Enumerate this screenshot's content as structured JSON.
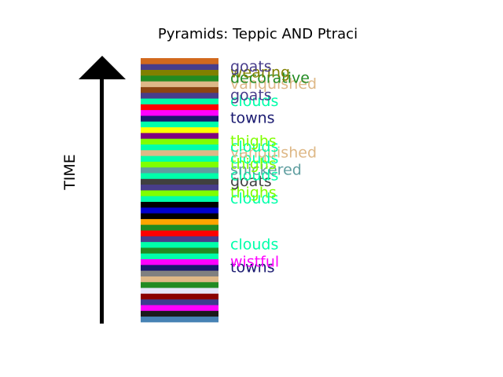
{
  "chart_data": {
    "type": "stacked-strata",
    "title": "Pyramids: Teppic AND Ptraci",
    "ylabel": "TIME",
    "arrow": "up",
    "strata": [
      {
        "color": "#4682b4"
      },
      {
        "color": "#1a1a1a"
      },
      {
        "color": "#ff00ff"
      },
      {
        "color": "#3d3d8f"
      },
      {
        "color": "#8b0000"
      },
      {
        "color": "#e6e6fa"
      },
      {
        "color": "#228b22"
      },
      {
        "color": "#deb887"
      },
      {
        "color": "#808080"
      },
      {
        "color": "#191970",
        "label": "towns"
      },
      {
        "color": "#ff00ff",
        "label": "wistful"
      },
      {
        "color": "#00ffaa"
      },
      {
        "color": "#228b22"
      },
      {
        "color": "#00ffaa",
        "label": "clouds"
      },
      {
        "color": "#483d8b"
      },
      {
        "color": "#ff0000"
      },
      {
        "color": "#228b22"
      },
      {
        "color": "#ffa500"
      },
      {
        "color": "#000000"
      },
      {
        "color": "#0000cd"
      },
      {
        "color": "#000000"
      },
      {
        "color": "#00ffaa",
        "label": "clouds"
      },
      {
        "color": "#7fff00",
        "label": "thighs"
      },
      {
        "color": "#483d8b"
      },
      {
        "color": "#404040",
        "label": "goats"
      },
      {
        "color": "#00ffaa",
        "label": "clouds"
      },
      {
        "color": "#5f9ea0",
        "label": "snickered"
      },
      {
        "color": "#7fff00",
        "label": "thighs"
      },
      {
        "color": "#00ffaa",
        "label": "clouds"
      },
      {
        "color": "#deb887",
        "label": "vanquished"
      },
      {
        "color": "#00ffaa",
        "label": "clouds"
      },
      {
        "color": "#7fff00",
        "label": "thighs"
      },
      {
        "color": "#800080"
      },
      {
        "color": "#ffff00"
      },
      {
        "color": "#00ffaa"
      },
      {
        "color": "#191970",
        "label": "towns"
      },
      {
        "color": "#ff00ff"
      },
      {
        "color": "#ff0000"
      },
      {
        "color": "#00ffaa",
        "label": "clouds"
      },
      {
        "color": "#483d8b",
        "label": "goats"
      },
      {
        "color": "#8b4513"
      },
      {
        "color": "#deb887",
        "label": "vanquished"
      },
      {
        "color": "#228b22",
        "label": "decorative"
      },
      {
        "color": "#808000",
        "label": "wearing"
      },
      {
        "color": "#483d8b",
        "label": "goats"
      },
      {
        "color": "#d2691e"
      }
    ]
  }
}
